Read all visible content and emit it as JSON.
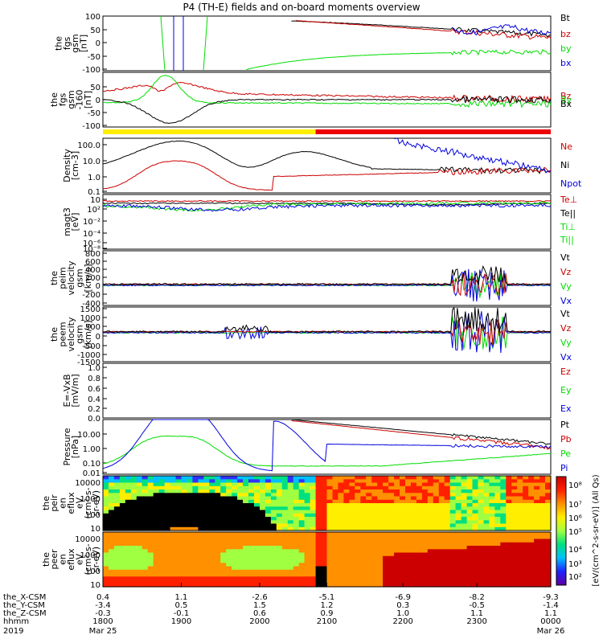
{
  "title": "P4 (TH-E) fields and on-board moments overview",
  "colors": {
    "black": "#000000",
    "red": "#cc0000",
    "green": "#00dd00",
    "blue": "#0000dd",
    "yellow": "#ffee00",
    "brightred": "#ee0000"
  },
  "panels": [
    {
      "id": "fgs-gsm",
      "ylabel": [
        "the",
        "fgs",
        "gsm",
        "[nT]"
      ],
      "ticks": [
        "100",
        "50",
        "0",
        "-50",
        "-100"
      ],
      "legend": [
        {
          "name": "Bt",
          "color": "black"
        },
        {
          "name": "bz",
          "color": "red"
        },
        {
          "name": "by",
          "color": "green"
        },
        {
          "name": "bx",
          "color": "blue"
        }
      ]
    },
    {
      "id": "fgs-gse",
      "ylabel": [
        "the",
        "fgs",
        "gsm",
        "-160",
        "[nT]"
      ],
      "ticks": [
        "50",
        "0",
        "-50",
        "-100"
      ],
      "legend": [
        {
          "name": "Bz",
          "color": "red"
        },
        {
          "name": "By",
          "color": "green"
        },
        {
          "name": "Bx",
          "color": "black"
        }
      ]
    },
    {
      "id": "density",
      "ylabel": [
        "Density",
        "[cm-3]"
      ],
      "ticks": [
        "100.0",
        "10.0",
        "1.0",
        "0.1"
      ],
      "legend": [
        {
          "name": "Ne",
          "color": "red"
        },
        {
          "name": "Ni",
          "color": "black"
        },
        {
          "name": "Npot",
          "color": "blue"
        }
      ]
    },
    {
      "id": "temperature",
      "ylabel": [
        "magt3",
        "[eV]"
      ],
      "ticks": [
        "10",
        "10²",
        "10⁻²",
        "10⁻⁴",
        "10⁻⁶",
        "10⁻⁸"
      ],
      "legend": [
        {
          "name": "Te⊥",
          "color": "red"
        },
        {
          "name": "Te||",
          "color": "black"
        },
        {
          "name": "Ti⊥",
          "color": "green"
        },
        {
          "name": "Ti||",
          "color": "green"
        }
      ]
    },
    {
      "id": "peim-velocity",
      "ylabel": [
        "the",
        "peim",
        "velocity",
        "gsm",
        "[km/s]"
      ],
      "ticks": [
        "800",
        "600",
        "400",
        "200",
        "0",
        "-200",
        "-400"
      ],
      "legend": [
        {
          "name": "Vt",
          "color": "black"
        },
        {
          "name": "Vz",
          "color": "red"
        },
        {
          "name": "Vy",
          "color": "green"
        },
        {
          "name": "Vx",
          "color": "blue"
        }
      ]
    },
    {
      "id": "peem-velocity",
      "ylabel": [
        "the",
        "peem",
        "velocity",
        "gsm",
        "[km/s]"
      ],
      "ticks": [
        "1500",
        "1000",
        "500",
        "0",
        "-500",
        "-1000",
        "-1500"
      ],
      "legend": [
        {
          "name": "Vt",
          "color": "black"
        },
        {
          "name": "Vz",
          "color": "red"
        },
        {
          "name": "Vy",
          "color": "green"
        },
        {
          "name": "Vx",
          "color": "blue"
        }
      ]
    },
    {
      "id": "efield",
      "ylabel": [
        "E=-VxB",
        "[mV/m]"
      ],
      "ticks": [
        "1.0",
        "0.8",
        "0.6",
        "0.4",
        "0.2",
        "0.0"
      ],
      "legend": [
        {
          "name": "Ez",
          "color": "red"
        },
        {
          "name": "Ey",
          "color": "green"
        },
        {
          "name": "Ex",
          "color": "blue"
        }
      ]
    },
    {
      "id": "pressure",
      "ylabel": [
        "Pressure",
        "[nPa]"
      ],
      "ticks": [
        "10.00",
        "1.00",
        "0.10",
        "0.01"
      ],
      "legend": [
        {
          "name": "Pt",
          "color": "black"
        },
        {
          "name": "Pb",
          "color": "red"
        },
        {
          "name": "Pe",
          "color": "green"
        },
        {
          "name": "Pi",
          "color": "blue"
        }
      ]
    },
    {
      "id": "peir-spec",
      "ylabel": [
        "the",
        "peir",
        "en",
        "eflux",
        "eV",
        "(cm²-s-",
        "sr-eV)"
      ],
      "ticks": [
        "10000",
        "1000",
        "100",
        "10"
      ]
    },
    {
      "id": "peer-spec",
      "ylabel": [
        "the",
        "peer",
        "en",
        "eflux",
        "eV",
        "(cm²-s-",
        "sr-eV)"
      ],
      "ticks": [
        "10000",
        "1000",
        "100",
        "10"
      ]
    }
  ],
  "colorbar": {
    "ticks": [
      "10⁸",
      "10⁷",
      "10⁶",
      "10⁵",
      "10⁴",
      "10³",
      "10²"
    ],
    "label": "[eV/(cm^2-s-sr-eV)] (All Qs)"
  },
  "xaxis": {
    "rows": [
      {
        "label": "the_X-CSM",
        "values": [
          "0.4",
          "1.1",
          "-2.6",
          "-5.1",
          "-6.9",
          "-8.2",
          "-9.3"
        ]
      },
      {
        "label": "the_Y-CSM",
        "values": [
          "-3.4",
          "0.5",
          "1.5",
          "1.2",
          "0.3",
          "-0.5",
          "-1.4"
        ]
      },
      {
        "label": "the_Z-CSM",
        "values": [
          "-0.3",
          "-0.1",
          "0.6",
          "0.9",
          "1.0",
          "1.1",
          "1.1"
        ]
      },
      {
        "label": "hhmm",
        "values": [
          "1800",
          "1900",
          "2000",
          "2100",
          "2200",
          "2300",
          "0000"
        ]
      }
    ],
    "year": "2019",
    "date_start": "Mar 25",
    "date_end": "Mar 26"
  },
  "chart_data": {
    "type": "line",
    "title": "P4 (TH-E) fields and on-board moments overview",
    "x": [
      "1800",
      "1900",
      "2000",
      "2100",
      "2200",
      "2300",
      "0000"
    ],
    "panels": [
      {
        "name": "fgs gsm",
        "ylim": [
          -100,
          100
        ],
        "series": [
          {
            "name": "Bt",
            "color": "black",
            "values": [
              null,
              null,
              null,
              92,
              55,
              45,
              28
            ]
          },
          {
            "name": "bz",
            "color": "red",
            "values": [
              null,
              null,
              null,
              90,
              50,
              38,
              18
            ]
          },
          {
            "name": "by",
            "color": "green",
            "values": [
              null,
              null,
              -95,
              -20,
              -10,
              -5,
              2
            ]
          },
          {
            "name": "bx",
            "color": "blue",
            "values": [
              null,
              null,
              null,
              null,
              null,
              45,
              18
            ]
          }
        ]
      },
      {
        "name": "fgs gsm -160",
        "ylim": [
          -130,
          60
        ],
        "series": [
          {
            "name": "Bz",
            "color": "red",
            "values": [
              35,
              0,
              40,
              32,
              22,
              8,
              0
            ]
          },
          {
            "name": "By",
            "color": "green",
            "values": [
              20,
              50,
              10,
              0,
              -5,
              -8,
              -10
            ]
          },
          {
            "name": "Bx",
            "color": "black",
            "values": [
              -10,
              -100,
              -40,
              -10,
              -5,
              -3,
              0
            ]
          }
        ]
      },
      {
        "name": "Density",
        "ylim": [
          0.1,
          200
        ],
        "series": [
          {
            "name": "Ne",
            "color": "red",
            "values": [
              1.5,
              5,
              0.15,
              1.5,
              3,
              2,
              1.2
            ]
          },
          {
            "name": "Ni",
            "color": "black",
            "values": [
              8,
              150,
              2,
              40,
              4,
              2,
              1
            ]
          },
          {
            "name": "Npot",
            "color": "blue",
            "values": [
              null,
              null,
              null,
              null,
              50,
              3,
              1.2
            ]
          }
        ]
      },
      {
        "name": "Pressure",
        "ylim": [
          0.01,
          20
        ],
        "series": [
          {
            "name": "Pt",
            "color": "black",
            "values": [
              null,
              null,
              null,
              20,
              6,
              2,
              1
            ]
          },
          {
            "name": "Pb",
            "color": "red",
            "values": [
              null,
              null,
              null,
              20,
              5,
              1.5,
              0.7
            ]
          },
          {
            "name": "Pe",
            "color": "green",
            "values": [
              0.05,
              0.5,
              0.05,
              0.03,
              0.1,
              0.6,
              0.5
            ]
          },
          {
            "name": "Pi",
            "color": "blue",
            "values": [
              0.03,
              5,
              0.03,
              1.3,
              0.6,
              1.5,
              0.8
            ]
          }
        ]
      }
    ]
  }
}
